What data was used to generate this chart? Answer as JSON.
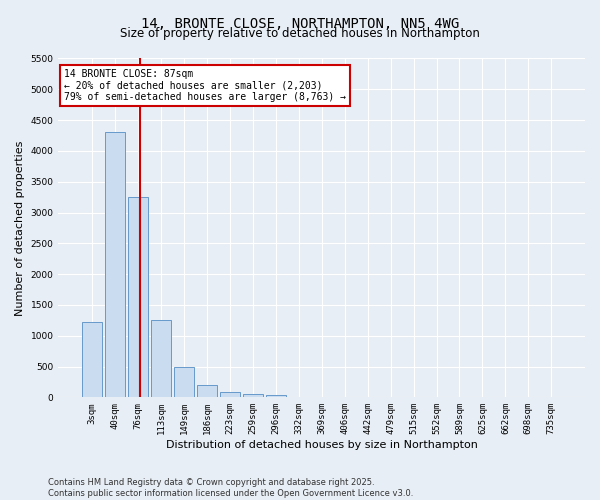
{
  "title_line1": "14, BRONTE CLOSE, NORTHAMPTON, NN5 4WG",
  "title_line2": "Size of property relative to detached houses in Northampton",
  "xlabel": "Distribution of detached houses by size in Northampton",
  "ylabel": "Number of detached properties",
  "categories": [
    "3sqm",
    "40sqm",
    "76sqm",
    "113sqm",
    "149sqm",
    "186sqm",
    "223sqm",
    "259sqm",
    "296sqm",
    "332sqm",
    "369sqm",
    "406sqm",
    "442sqm",
    "479sqm",
    "515sqm",
    "552sqm",
    "589sqm",
    "625sqm",
    "662sqm",
    "698sqm",
    "735sqm"
  ],
  "values": [
    1220,
    4300,
    3250,
    1260,
    490,
    195,
    90,
    55,
    40,
    0,
    0,
    0,
    0,
    0,
    0,
    0,
    0,
    0,
    0,
    0,
    0
  ],
  "bar_color": "#c9dcf0",
  "bar_edge_color": "#6699cc",
  "vline_color": "#cc0000",
  "annotation_line1": "14 BRONTE CLOSE: 87sqm",
  "annotation_line2": "← 20% of detached houses are smaller (2,203)",
  "annotation_line3": "79% of semi-detached houses are larger (8,763) →",
  "annotation_box_color": "#ffffff",
  "annotation_box_edge": "#cc0000",
  "ylim_max": 5500,
  "yticks": [
    0,
    500,
    1000,
    1500,
    2000,
    2500,
    3000,
    3500,
    4000,
    4500,
    5000,
    5500
  ],
  "bg_color": "#e8eef5",
  "grid_color": "#ffffff",
  "footer_line1": "Contains HM Land Registry data © Crown copyright and database right 2025.",
  "footer_line2": "Contains public sector information licensed under the Open Government Licence v3.0.",
  "title_fontsize": 10,
  "subtitle_fontsize": 8.5,
  "tick_fontsize": 6.5,
  "label_fontsize": 8,
  "annot_fontsize": 7,
  "footer_fontsize": 6
}
